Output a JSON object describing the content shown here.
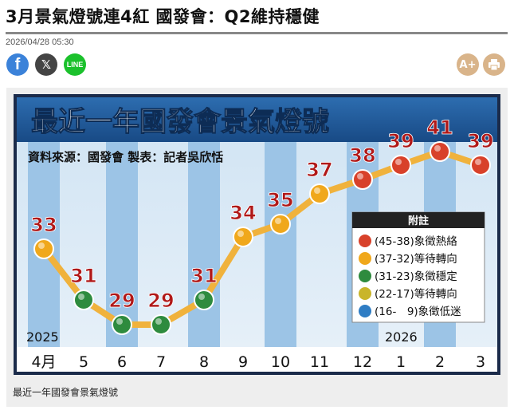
{
  "article": {
    "title": "3月景氣燈號連4紅 國發會：Q2維持穩健",
    "date": "2026/04/28 05:30"
  },
  "share": {
    "facebook": "f",
    "x": "𝕏",
    "line": "LINE",
    "font_size": "A+",
    "print": "print-icon"
  },
  "figure": {
    "caption": "最近一年國發會景氣燈號"
  },
  "chart_data": {
    "type": "line",
    "title": "最近一年國發會景氣燈號",
    "subtitle": "資料來源：國發會 製表：記者吳欣恬",
    "categories": [
      "4月",
      "5",
      "6",
      "7",
      "8",
      "9",
      "10",
      "11",
      "12",
      "1",
      "2",
      "3"
    ],
    "year_labels": {
      "start": "2025",
      "end": "2026"
    },
    "values": [
      33,
      31,
      29,
      29,
      31,
      34,
      35,
      37,
      38,
      39,
      41,
      39
    ],
    "legend": {
      "title": "附註",
      "items": [
        {
          "label": "(45-38)象徵熱絡",
          "color": "#d8412a"
        },
        {
          "label": "(37-32)等待轉向",
          "color": "#f0a81c"
        },
        {
          "label": "(31-23)象徵穩定",
          "color": "#2e8b3e"
        },
        {
          "label": "(22-17)等待轉向",
          "color": "#c9b52a"
        },
        {
          "label": "(16-　9)象徵低迷",
          "color": "#2f7dc4"
        }
      ]
    },
    "colors": {
      "line": "#f0b23c",
      "label": "#b01818",
      "banner": "#1f5a9a",
      "border": "#1b2b4a"
    }
  }
}
